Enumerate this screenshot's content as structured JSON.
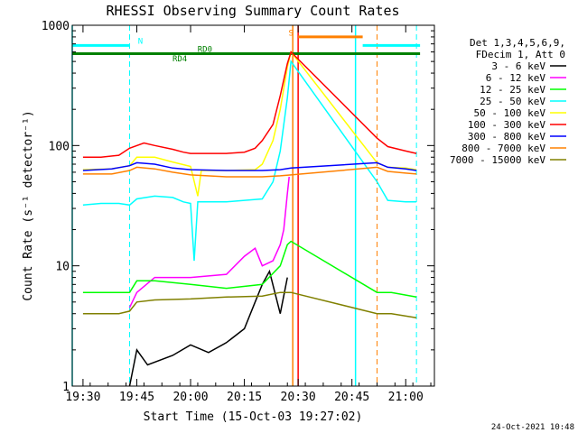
{
  "chart_data": {
    "type": "line",
    "title": "RHESSI Observing Summary Count Rates",
    "xlabel": "Start Time (15-Oct-03 19:27:02)",
    "ylabel": "Count Rate (s⁻¹ detector⁻¹)",
    "y_scale": "log",
    "ylim": [
      1,
      1000
    ],
    "xlim": [
      "19:27",
      "21:08"
    ],
    "x_ticks": [
      "19:30",
      "19:45",
      "20:00",
      "20:15",
      "20:30",
      "20:45",
      "21:00"
    ],
    "y_ticks": [
      "1",
      "10",
      "100",
      "1000"
    ],
    "legend_header": [
      "Det 1,3,4,5,6,9,",
      "FDecim 1, Att 0"
    ],
    "legend_position": "right",
    "timestamp": "24-Oct-2021 10:48",
    "annotations": [
      "N",
      "RD0",
      "RD4",
      "S"
    ],
    "series": [
      {
        "name": "3 - 6 keV",
        "color": "#000000",
        "points": [
          [
            "19:43",
            1
          ],
          [
            "19:45",
            2
          ],
          [
            "19:48",
            1.5
          ],
          [
            "19:55",
            1.8
          ],
          [
            "20:00",
            2.2
          ],
          [
            "20:05",
            1.9
          ],
          [
            "20:10",
            2.3
          ],
          [
            "20:15",
            3
          ],
          [
            "20:18",
            5
          ],
          [
            "20:20",
            7
          ],
          [
            "20:22",
            9
          ],
          [
            "20:25",
            4
          ],
          [
            "20:27",
            8
          ]
        ]
      },
      {
        "name": "6 - 12 keV",
        "color": "#ff00ff",
        "points": [
          [
            "19:43",
            4.5
          ],
          [
            "19:45",
            6
          ],
          [
            "19:50",
            8
          ],
          [
            "20:00",
            8
          ],
          [
            "20:10",
            8.5
          ],
          [
            "20:15",
            12
          ],
          [
            "20:18",
            14
          ],
          [
            "20:20",
            10
          ],
          [
            "20:23",
            11
          ],
          [
            "20:25",
            15
          ],
          [
            "20:26",
            20
          ],
          [
            "20:27",
            40
          ],
          [
            "20:27.5",
            55
          ]
        ]
      },
      {
        "name": "12 - 25 keV",
        "color": "#00ff00",
        "points": [
          [
            "19:30",
            6
          ],
          [
            "19:40",
            6
          ],
          [
            "19:43",
            6
          ],
          [
            "19:45",
            7.5
          ],
          [
            "19:50",
            7.5
          ],
          [
            "20:00",
            7
          ],
          [
            "20:10",
            6.5
          ],
          [
            "20:20",
            7
          ],
          [
            "20:25",
            10
          ],
          [
            "20:27",
            15
          ],
          [
            "20:28",
            16
          ],
          [
            "20:52",
            6
          ],
          [
            "20:56",
            6
          ],
          [
            "21:03",
            5.5
          ]
        ]
      },
      {
        "name": "25 - 50 keV",
        "color": "#00ffff",
        "points": [
          [
            "19:30",
            32
          ],
          [
            "19:35",
            33
          ],
          [
            "19:40",
            33
          ],
          [
            "19:43",
            32
          ],
          [
            "19:45",
            36
          ],
          [
            "19:50",
            38
          ],
          [
            "19:55",
            37
          ],
          [
            "19:58",
            34
          ],
          [
            "20:00",
            33
          ],
          [
            "20:01",
            11
          ],
          [
            "20:02",
            34
          ],
          [
            "20:05",
            34
          ],
          [
            "20:10",
            34
          ],
          [
            "20:15",
            35
          ],
          [
            "20:20",
            36
          ],
          [
            "20:23",
            50
          ],
          [
            "20:25",
            90
          ],
          [
            "20:27",
            250
          ],
          [
            "20:28",
            500
          ],
          [
            "20:52",
            50
          ],
          [
            "20:55",
            35
          ],
          [
            "21:00",
            34
          ],
          [
            "21:03",
            34
          ]
        ]
      },
      {
        "name": "50 - 100 keV",
        "color": "#ffff00",
        "points": [
          [
            "19:30",
            63
          ],
          [
            "19:38",
            64
          ],
          [
            "19:43",
            68
          ],
          [
            "19:45",
            80
          ],
          [
            "19:50",
            80
          ],
          [
            "19:55",
            73
          ],
          [
            "20:00",
            67
          ],
          [
            "20:02",
            38
          ],
          [
            "20:03",
            62
          ],
          [
            "20:10",
            62
          ],
          [
            "20:18",
            63
          ],
          [
            "20:20",
            70
          ],
          [
            "20:23",
            110
          ],
          [
            "20:25",
            200
          ],
          [
            "20:27",
            450
          ],
          [
            "20:28",
            600
          ],
          [
            "20:52",
            72
          ],
          [
            "20:55",
            66
          ],
          [
            "21:00",
            65
          ],
          [
            "21:03",
            63
          ]
        ]
      },
      {
        "name": "100 - 300 keV",
        "color": "#ff0000",
        "points": [
          [
            "19:30",
            80
          ],
          [
            "19:35",
            80
          ],
          [
            "19:40",
            83
          ],
          [
            "19:43",
            95
          ],
          [
            "19:47",
            105
          ],
          [
            "19:50",
            100
          ],
          [
            "19:55",
            93
          ],
          [
            "19:58",
            88
          ],
          [
            "20:00",
            86
          ],
          [
            "20:10",
            86
          ],
          [
            "20:15",
            88
          ],
          [
            "20:18",
            95
          ],
          [
            "20:20",
            110
          ],
          [
            "20:23",
            150
          ],
          [
            "20:25",
            260
          ],
          [
            "20:27",
            480
          ],
          [
            "20:28",
            600
          ],
          [
            "20:52",
            115
          ],
          [
            "20:55",
            98
          ],
          [
            "21:00",
            90
          ],
          [
            "21:03",
            86
          ]
        ]
      },
      {
        "name": "300 - 800 keV",
        "color": "#0000ff",
        "points": [
          [
            "19:30",
            62
          ],
          [
            "19:38",
            64
          ],
          [
            "19:43",
            68
          ],
          [
            "19:45",
            72
          ],
          [
            "19:50",
            70
          ],
          [
            "19:55",
            65
          ],
          [
            "20:00",
            63
          ],
          [
            "20:10",
            62
          ],
          [
            "20:20",
            62
          ],
          [
            "20:25",
            63
          ],
          [
            "20:28",
            65
          ],
          [
            "20:52",
            72
          ],
          [
            "20:55",
            66
          ],
          [
            "21:00",
            64
          ],
          [
            "21:03",
            62
          ]
        ]
      },
      {
        "name": "800 - 7000 keV",
        "color": "#ff8000",
        "points": [
          [
            "19:30",
            58
          ],
          [
            "19:38",
            58
          ],
          [
            "19:43",
            62
          ],
          [
            "19:45",
            66
          ],
          [
            "19:50",
            64
          ],
          [
            "19:55",
            60
          ],
          [
            "20:00",
            57
          ],
          [
            "20:10",
            55
          ],
          [
            "20:20",
            55
          ],
          [
            "20:25",
            56
          ],
          [
            "20:28",
            57
          ],
          [
            "20:52",
            66
          ],
          [
            "20:55",
            61
          ],
          [
            "21:00",
            59
          ],
          [
            "21:03",
            58
          ]
        ]
      },
      {
        "name": "7000 - 15000 keV",
        "color": "#808000",
        "points": [
          [
            "19:30",
            4
          ],
          [
            "19:40",
            4
          ],
          [
            "19:43",
            4.2
          ],
          [
            "19:45",
            5
          ],
          [
            "19:50",
            5.2
          ],
          [
            "20:00",
            5.3
          ],
          [
            "20:10",
            5.5
          ],
          [
            "20:20",
            5.6
          ],
          [
            "20:25",
            6
          ],
          [
            "20:28",
            6
          ],
          [
            "20:52",
            4
          ],
          [
            "20:56",
            4
          ],
          [
            "21:03",
            3.7
          ]
        ]
      }
    ],
    "flags": [
      {
        "name": "N",
        "color": "#00ffff",
        "level": 680,
        "start": "19:27",
        "end": "19:43"
      },
      {
        "name": "N",
        "color": "#00ffff",
        "level": 680,
        "start": "20:48",
        "end": "21:04"
      },
      {
        "name": "RD0",
        "color": "#008000",
        "level": 580,
        "start": "19:27",
        "end": "21:04"
      },
      {
        "name": "S",
        "color": "#ff8000",
        "level": 800,
        "start": "20:30",
        "end": "20:48"
      }
    ],
    "vlines_solid": [
      {
        "time": "19:27",
        "color": "#00ffff"
      },
      {
        "time": "20:28.5",
        "color": "#ff8000"
      },
      {
        "time": "20:30",
        "color": "#ff0000"
      },
      {
        "time": "20:46",
        "color": "#00ffff"
      }
    ],
    "vlines_dashed": [
      {
        "time": "19:43",
        "color": "#00ffff"
      },
      {
        "time": "20:52",
        "color": "#ff8000"
      },
      {
        "time": "21:03",
        "color": "#00ffff"
      }
    ]
  }
}
